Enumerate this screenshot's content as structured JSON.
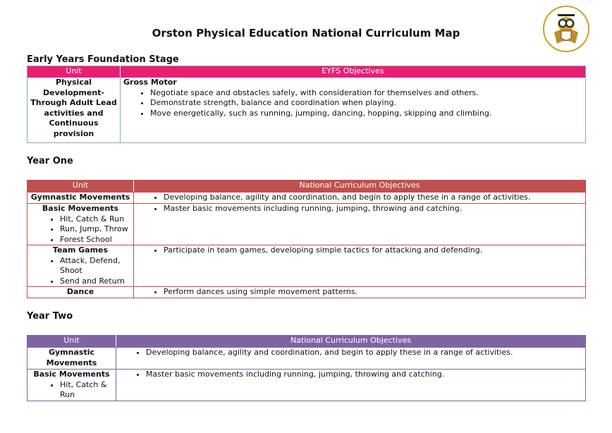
{
  "title": "Orston Physical Education National Curriculum Map",
  "colors": {
    "eyfs": "#e91e72",
    "year_one": "#c0504d",
    "year_two": "#8064a2"
  },
  "logo": {
    "icon": "owl-school-crest-icon"
  },
  "eyfs": {
    "heading": "Early Years Foundation Stage",
    "col_unit": "Unit",
    "col_obj": "EYFS Objectives",
    "unit": "Physical Development- Through Adult Lead activities and Continuous provision",
    "subheading": "Gross Motor",
    "objectives": [
      "Negotiate space and obstacles safely, with consideration for themselves and others.",
      "Demonstrate strength, balance and coordination when playing.",
      "Move energetically, such as running, jumping, dancing, hopping, skipping and climbing."
    ]
  },
  "year_one": {
    "heading": "Year One",
    "col_unit": "Unit",
    "col_obj": "National Curriculum Objectives",
    "rows": [
      {
        "unit": "Gymnastic Movements",
        "subs": [],
        "objective": "Developing balance, agility and coordination, and begin to apply these in a range of activities."
      },
      {
        "unit": "Basic Movements",
        "subs": [
          "Hit, Catch & Run",
          "Run, Jump, Throw",
          "Forest School"
        ],
        "objective": "Master basic movements including running, jumping, throwing and catching."
      },
      {
        "unit": "Team Games",
        "subs": [
          "Attack, Defend, Shoot",
          "Send and Return"
        ],
        "objective": "Participate in team games, developing simple tactics for attacking and defending."
      },
      {
        "unit": "Dance",
        "subs": [],
        "objective": "Perform dances using simple movement patterns."
      }
    ]
  },
  "year_two": {
    "heading": "Year Two",
    "col_unit": "Unit",
    "col_obj": "National Curriculum Objectives",
    "rows": [
      {
        "unit": "Gymnastic Movements",
        "subs": [],
        "objective": "Developing balance, agility and coordination, and begin to apply these in a range of activities."
      },
      {
        "unit": "Basic Movements",
        "subs": [
          "Hit, Catch & Run"
        ],
        "objective": "Master basic movements including running, jumping, throwing and catching."
      }
    ]
  }
}
